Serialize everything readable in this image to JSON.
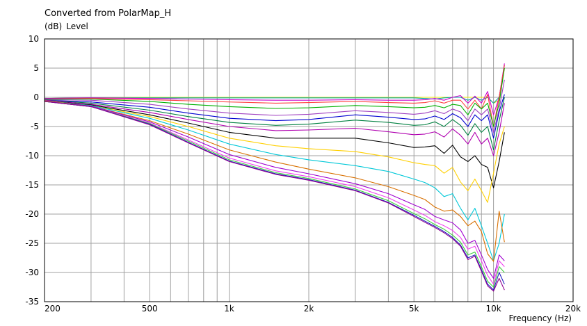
{
  "chart_data": {
    "type": "line",
    "title": "Converted from PolarMap_H",
    "ylabel_unit": "(dB)",
    "ylabel": "Level",
    "xlabel": "Frequency  (Hz)",
    "xscale": "log",
    "xlim": [
      200,
      20000
    ],
    "ylim": [
      -35,
      10
    ],
    "grid": true,
    "x_tick_labels": [
      {
        "value": 200,
        "label": "200"
      },
      {
        "value": 500,
        "label": "500"
      },
      {
        "value": 1000,
        "label": "1k"
      },
      {
        "value": 2000,
        "label": "2k"
      },
      {
        "value": 5000,
        "label": "5k"
      },
      {
        "value": 10000,
        "label": "10k"
      },
      {
        "value": 20000,
        "label": "20k"
      }
    ],
    "y_ticks": [
      10,
      5,
      0,
      -5,
      -10,
      -15,
      -20,
      -25,
      -30,
      -35
    ],
    "x": [
      200,
      300,
      500,
      700,
      1000,
      1500,
      2000,
      3000,
      4000,
      5000,
      5500,
      6000,
      6500,
      7000,
      7500,
      8000,
      8500,
      9000,
      9500,
      10000,
      10500,
      11000
    ],
    "series": [
      {
        "color": "#e8e800",
        "values": [
          -0.2,
          -0.1,
          0,
          0,
          0,
          0,
          0,
          0,
          0,
          0,
          0,
          0,
          0,
          0,
          0,
          0,
          0,
          0,
          0,
          -1,
          -0.5,
          5
        ]
      },
      {
        "color": "#00a0a0",
        "values": [
          -0.2,
          -0.1,
          -0.1,
          -0.1,
          -0.1,
          -0.1,
          -0.1,
          -0.1,
          -0.1,
          -0.1,
          -0.2,
          -0.3,
          -0.1,
          0,
          0,
          -0.5,
          0,
          -0.5,
          0,
          -1,
          0,
          5.5
        ]
      },
      {
        "color": "#cc00cc",
        "values": [
          -0.2,
          -0.1,
          -0.2,
          -0.3,
          -0.4,
          -0.5,
          -0.5,
          -0.4,
          -0.5,
          -0.5,
          -0.4,
          -0.2,
          -0.5,
          0,
          0.3,
          -1,
          0.2,
          -1,
          1,
          -3,
          0,
          5.8
        ]
      },
      {
        "color": "#ff4040",
        "values": [
          -0.3,
          -0.2,
          -0.4,
          -0.6,
          -0.8,
          -1,
          -0.9,
          -0.7,
          -0.9,
          -1,
          -0.9,
          -0.6,
          -1,
          -0.5,
          -0.5,
          -2,
          -0.5,
          -2,
          0.5,
          -5,
          0,
          5.5
        ]
      },
      {
        "color": "#00b000",
        "values": [
          -0.3,
          -0.3,
          -0.7,
          -1.2,
          -1.6,
          -1.9,
          -1.8,
          -1.4,
          -1.6,
          -1.8,
          -1.7,
          -1.4,
          -1.8,
          -1.2,
          -1.4,
          -3,
          -1,
          -2,
          -1,
          -5,
          -1,
          5
        ]
      },
      {
        "color": "#a040c0",
        "values": [
          -0.4,
          -0.5,
          -1.2,
          -2,
          -2.7,
          -3.1,
          -2.9,
          -2.3,
          -2.6,
          -2.9,
          -2.7,
          -2.3,
          -2.8,
          -2,
          -2.5,
          -4,
          -2,
          -3,
          -2,
          -6,
          -2,
          3
        ]
      },
      {
        "color": "#0000d0",
        "values": [
          -0.5,
          -0.8,
          -1.7,
          -2.7,
          -3.6,
          -4,
          -3.8,
          -3,
          -3.4,
          -3.8,
          -3.7,
          -3.2,
          -3.8,
          -2.8,
          -3.5,
          -5,
          -3,
          -4,
          -3,
          -7,
          -2.5,
          0.5
        ]
      },
      {
        "color": "#008040",
        "values": [
          -0.5,
          -1,
          -2.2,
          -3.3,
          -4.3,
          -4.8,
          -4.6,
          -3.9,
          -4.3,
          -4.8,
          -4.7,
          -4.2,
          -5,
          -3.8,
          -4.8,
          -6.5,
          -4.5,
          -6,
          -5,
          -9,
          -4,
          0
        ]
      },
      {
        "color": "#b000b0",
        "values": [
          -0.5,
          -1.2,
          -2.6,
          -3.8,
          -5,
          -5.7,
          -5.6,
          -5.3,
          -5.9,
          -6.4,
          -6.3,
          -5.9,
          -6.8,
          -5.4,
          -6.5,
          -8,
          -6,
          -8,
          -7,
          -10,
          -6,
          -1
        ]
      },
      {
        "color": "#000000",
        "values": [
          -0.6,
          -1.3,
          -3,
          -4.4,
          -6,
          -7,
          -7,
          -7,
          -7.8,
          -8.6,
          -8.5,
          -8.3,
          -9.6,
          -8.2,
          -10.2,
          -11,
          -10,
          -11.5,
          -12,
          -15.5,
          -11,
          -6
        ]
      },
      {
        "color": "#ffd000",
        "values": [
          -0.6,
          -1.4,
          -3.3,
          -5,
          -7,
          -8.3,
          -8.8,
          -9.3,
          -10.2,
          -11.2,
          -11.5,
          -11.7,
          -13,
          -12,
          -14.5,
          -16,
          -14,
          -16,
          -18,
          -13,
          -8,
          -5
        ]
      },
      {
        "color": "#00c8d8",
        "values": [
          -0.6,
          -1.4,
          -3.6,
          -5.6,
          -8,
          -9.8,
          -10.7,
          -11.7,
          -12.7,
          -14,
          -14.6,
          -15.5,
          -17,
          -16.5,
          -19,
          -21,
          -19,
          -22,
          -25,
          -28,
          -25,
          -20
        ]
      },
      {
        "color": "#d87000",
        "values": [
          -0.6,
          -1.5,
          -4,
          -6.3,
          -9,
          -11.1,
          -12.3,
          -13.8,
          -15.3,
          -16.8,
          -17.5,
          -18.8,
          -19.5,
          -19.3,
          -20.4,
          -22,
          -21.2,
          -23,
          -26.8,
          -28.1,
          -19.5,
          -24.8
        ]
      },
      {
        "color": "#a000d0",
        "values": [
          -0.7,
          -1.5,
          -4.2,
          -6.8,
          -9.8,
          -12,
          -13.1,
          -14.8,
          -16.5,
          -18.4,
          -19.2,
          -20.4,
          -21,
          -21.5,
          -22.7,
          -25,
          -24.5,
          -27,
          -29.5,
          -31,
          -27,
          -28
        ]
      },
      {
        "color": "#f040f0",
        "values": [
          -0.7,
          -1.6,
          -4.4,
          -7.3,
          -10.4,
          -12.6,
          -13.6,
          -15.3,
          -17.2,
          -19.3,
          -20.2,
          -21.3,
          -22,
          -22.8,
          -24,
          -26,
          -25.5,
          -28,
          -30.5,
          -32,
          -28,
          -29
        ]
      },
      {
        "color": "#40d040",
        "values": [
          -0.7,
          -1.6,
          -4.5,
          -7.5,
          -10.7,
          -12.9,
          -13.9,
          -15.7,
          -17.7,
          -19.9,
          -20.8,
          -21.8,
          -22.6,
          -23.6,
          -24.8,
          -27,
          -26.5,
          -29,
          -31.5,
          -32.5,
          -29,
          -30
        ]
      },
      {
        "color": "#2020c0",
        "values": [
          -0.7,
          -1.6,
          -4.6,
          -7.7,
          -10.9,
          -13.1,
          -14.1,
          -15.9,
          -18,
          -20.2,
          -21.2,
          -22.1,
          -23,
          -24,
          -25.3,
          -27.5,
          -27,
          -29.5,
          -32,
          -33,
          -30,
          -32
        ]
      },
      {
        "color": "#900090",
        "values": [
          -0.7,
          -1.6,
          -4.7,
          -7.8,
          -11,
          -13.2,
          -14.2,
          -16,
          -18.1,
          -20.4,
          -21.4,
          -22.3,
          -23.2,
          -24.2,
          -25.5,
          -27.8,
          -27.2,
          -29.8,
          -32.3,
          -33.2,
          -31,
          -33
        ]
      }
    ]
  }
}
